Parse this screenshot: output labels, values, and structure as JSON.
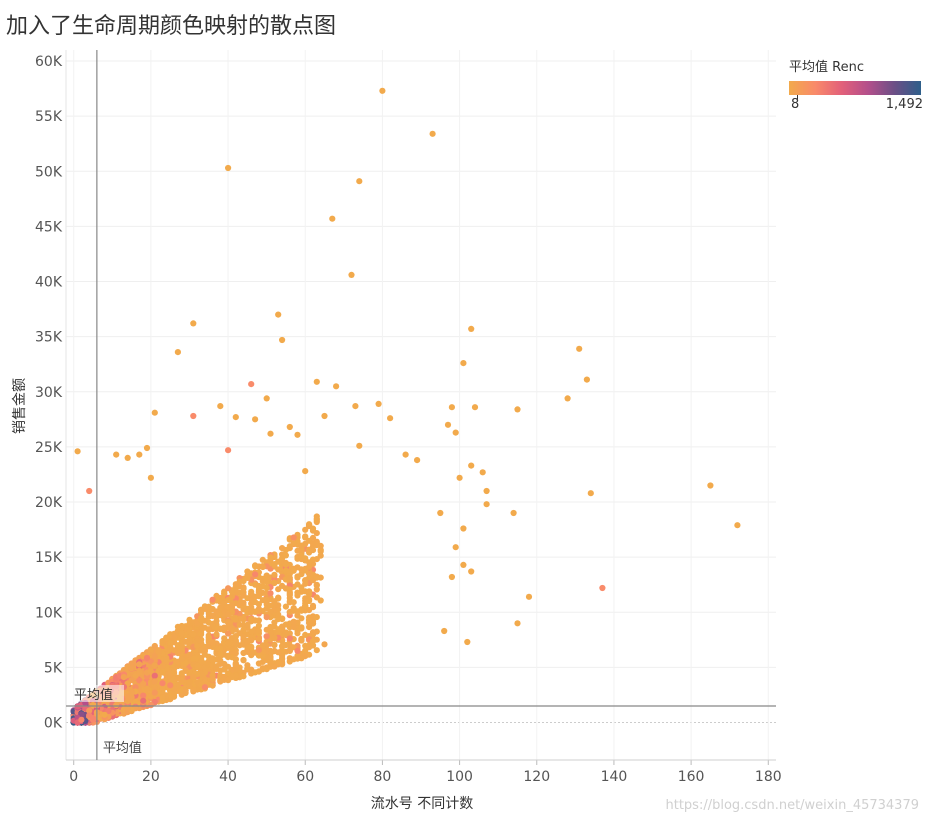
{
  "title": "加入了生命周期颜色映射的散点图",
  "legend": {
    "title": "平均值 Renc",
    "min_label": "8",
    "max_label": "1,492",
    "colors": [
      "#f2aa4c",
      "#f98a6a",
      "#e2607a",
      "#b34f8b",
      "#6b4f86",
      "#2e5f8a"
    ]
  },
  "watermark": "https://blog.csdn.net/weixin_45734379",
  "chart_data": {
    "type": "scatter",
    "title": "加入了生命周期颜色映射的散点图",
    "xlabel": "流水号 不同计数",
    "ylabel": "销售金额",
    "xlim": [
      -2,
      182
    ],
    "ylim": [
      -3400,
      61000
    ],
    "x_ticks": [
      0,
      20,
      40,
      60,
      80,
      100,
      120,
      140,
      160,
      180
    ],
    "x_tick_labels": [
      "0",
      "20",
      "40",
      "60",
      "80",
      "100",
      "120",
      "140",
      "160",
      "180"
    ],
    "y_ticks": [
      0,
      5000,
      10000,
      15000,
      20000,
      25000,
      30000,
      35000,
      40000,
      45000,
      50000,
      55000,
      60000
    ],
    "y_tick_labels": [
      "0K",
      "5K",
      "10K",
      "15K",
      "20K",
      "25K",
      "30K",
      "35K",
      "40K",
      "45K",
      "50K",
      "55K",
      "60K"
    ],
    "grid": true,
    "color_field": "平均值 Renc",
    "color_range": [
      8,
      1492
    ],
    "reference_lines": {
      "x_average": {
        "value": 6,
        "label": "平均值"
      },
      "y_average": {
        "value": 1500,
        "label": "平均值"
      }
    },
    "points": [
      [
        80,
        57300,
        8
      ],
      [
        93,
        53400,
        8
      ],
      [
        40,
        50300,
        8
      ],
      [
        74,
        49100,
        8
      ],
      [
        67,
        45700,
        8
      ],
      [
        72,
        40600,
        8
      ],
      [
        53,
        37000,
        8
      ],
      [
        31,
        36200,
        8
      ],
      [
        54,
        34700,
        8
      ],
      [
        103,
        35700,
        8
      ],
      [
        27,
        33600,
        8
      ],
      [
        131,
        33900,
        8
      ],
      [
        101,
        32600,
        8
      ],
      [
        133,
        31100,
        8
      ],
      [
        63,
        30900,
        8
      ],
      [
        68,
        30500,
        8
      ],
      [
        46,
        30700,
        300
      ],
      [
        128,
        29400,
        8
      ],
      [
        50,
        29400,
        8
      ],
      [
        38,
        28700,
        8
      ],
      [
        73,
        28700,
        8
      ],
      [
        79,
        28900,
        8
      ],
      [
        98,
        28600,
        8
      ],
      [
        104,
        28600,
        8
      ],
      [
        115,
        28400,
        8
      ],
      [
        21,
        28100,
        8
      ],
      [
        31,
        27800,
        300
      ],
      [
        42,
        27700,
        8
      ],
      [
        47,
        27500,
        8
      ],
      [
        65,
        27800,
        8
      ],
      [
        82,
        27600,
        8
      ],
      [
        56,
        26800,
        8
      ],
      [
        97,
        27000,
        8
      ],
      [
        99,
        26300,
        8
      ],
      [
        58,
        26100,
        8
      ],
      [
        51,
        26200,
        8
      ],
      [
        74,
        25100,
        8
      ],
      [
        19,
        24900,
        8
      ],
      [
        1,
        24600,
        8
      ],
      [
        40,
        24700,
        300
      ],
      [
        11,
        24300,
        8
      ],
      [
        14,
        24000,
        8
      ],
      [
        17,
        24300,
        8
      ],
      [
        86,
        24300,
        8
      ],
      [
        89,
        23800,
        8
      ],
      [
        103,
        23300,
        8
      ],
      [
        106,
        22700,
        8
      ],
      [
        60,
        22800,
        8
      ],
      [
        100,
        22200,
        8
      ],
      [
        20,
        22200,
        8
      ],
      [
        107,
        21000,
        8
      ],
      [
        165,
        21500,
        8
      ],
      [
        4,
        21000,
        300
      ],
      [
        134,
        20800,
        8
      ],
      [
        107,
        19800,
        8
      ],
      [
        114,
        19000,
        8
      ],
      [
        95,
        19000,
        8
      ],
      [
        172,
        17900,
        8
      ],
      [
        101,
        17600,
        8
      ],
      [
        99,
        15900,
        8
      ],
      [
        137,
        12200,
        300
      ],
      [
        118,
        11400,
        8
      ],
      [
        102,
        7300,
        8
      ],
      [
        96,
        8300,
        8
      ],
      [
        115,
        9000,
        8
      ],
      [
        98,
        13200,
        8
      ],
      [
        101,
        14300,
        8
      ],
      [
        103,
        13700,
        8
      ]
    ]
  }
}
